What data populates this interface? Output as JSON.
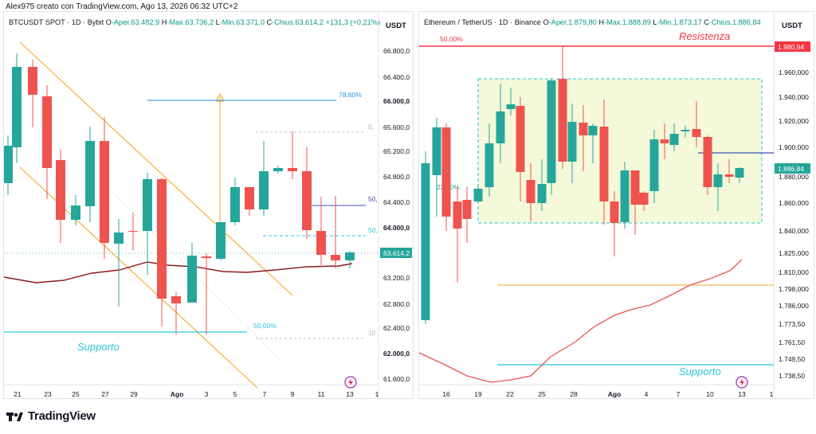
{
  "header": {
    "title": "Alex975 creato con TradingView.com, Ago 13, 2026 06:32 UTC+2"
  },
  "left": {
    "legend": {
      "symbol": "BTCUSDT SPOT · 1D · Bybit",
      "o_label": "O",
      "o": "-Aper.63.482,9",
      "h_label": "H",
      "h": "-Max.63.736,2",
      "l_label": "L",
      "l": "-Min.63.371,0",
      "c_label": "C",
      "c": "-Chius.63.614,2",
      "chg": "+131,3 (+0,21%)"
    },
    "currency": "USDT",
    "price_labels": [
      "66.800,0",
      "66.400,0",
      "66.000,0",
      "65.600,0",
      "65.200,0",
      "64.800,0",
      "64.400,0",
      "64.000,0",
      "63.200,0",
      "62.800,0",
      "62.400,0",
      "62.000,0",
      "61.600,0"
    ],
    "last_price": "63.614,2",
    "date_labels": [
      "21",
      "23",
      "25",
      "27",
      "29",
      "Ago",
      "3",
      "5",
      "7",
      "9",
      "11",
      "13",
      "1"
    ],
    "annotations": {
      "support": "Supporto",
      "fib_786": "78,60%",
      "fib_50": "50,00%",
      "fib_50b": "50,",
      "fib_50c": "50,",
      "fib_0": "0,",
      "fib_100": "10"
    }
  },
  "right": {
    "legend": {
      "symbol": "Ethereum / TetherUS · 1D · Binance",
      "o_label": "O",
      "o": "-Aper.1.879,80",
      "h_label": "H",
      "h": "-Max.1.888,89",
      "l_label": "L",
      "l": "-Min.1.873,17",
      "c_label": "C",
      "c": "-Chius.1.886,84"
    },
    "currency": "USDT",
    "price_labels": [
      "1.960,000",
      "1.940,000",
      "1.920,000",
      "1.900,000",
      "1.880,000",
      "1.860,000",
      "1.840,000",
      "1.825,000",
      "1.810,000",
      "1.798,000",
      "1.786,000",
      "1.773,50",
      "1.761,50",
      "1.749,50",
      "1.738,50"
    ],
    "resistance_price": "1.980,94",
    "last_price": "1.886,84",
    "date_labels": [
      "16",
      "19",
      "22",
      "25",
      "28",
      "Ago",
      "4",
      "7",
      "10",
      "13",
      "1"
    ],
    "annotations": {
      "resistance": "Resistenza",
      "support": "Supporto",
      "fib_50": "50,00%",
      "fib_23": "23,20%"
    }
  },
  "footer": {
    "brand": "TradingView"
  },
  "colors": {
    "up": "#26a69a",
    "down": "#ef5350",
    "support": "#26c6da",
    "resistance": "#f23645",
    "ma": "#8b1a1a",
    "channel": "#f5a623"
  }
}
